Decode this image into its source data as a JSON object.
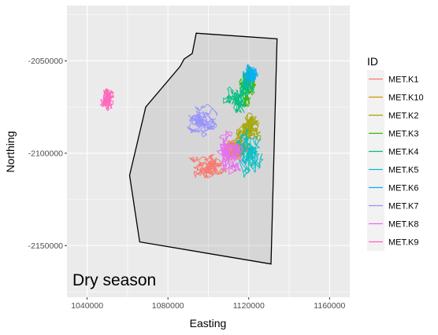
{
  "chart_data": {
    "type": "line",
    "xlabel": "Easting",
    "ylabel": "Northing",
    "xlim": [
      1030000,
      1170000
    ],
    "ylim": [
      -2178000,
      -2020000
    ],
    "x_ticks": [
      1040000,
      1080000,
      1120000,
      1160000
    ],
    "x_tick_labels": [
      "1040000",
      "1080000",
      "1120000",
      "1160000"
    ],
    "y_ticks": [
      -2050000,
      -2100000,
      -2150000
    ],
    "y_tick_labels": [
      "-2050000",
      "-2100000",
      "-2150000"
    ],
    "grid": true,
    "annotation": "Dry season",
    "legend": {
      "title": "ID",
      "position": "right"
    },
    "hull_polygon": [
      [
        1094000,
        -2035000
      ],
      [
        1134000,
        -2038000
      ],
      [
        1131000,
        -2160000
      ],
      [
        1066000,
        -2148000
      ],
      [
        1061000,
        -2112000
      ],
      [
        1069000,
        -2075000
      ],
      [
        1086000,
        -2053000
      ],
      [
        1088000,
        -2049000
      ],
      [
        1092000,
        -2046000
      ]
    ],
    "series": [
      {
        "name": "MET.K1",
        "color": "#F8766D",
        "center": [
          1098000,
          -2107000
        ],
        "spread": [
          13000,
          12000
        ]
      },
      {
        "name": "MET.K10",
        "color": "#D89000",
        "center": [
          1114000,
          -2097000
        ],
        "spread": [
          11000,
          13000
        ]
      },
      {
        "name": "MET.K2",
        "color": "#A3A500",
        "center": [
          1120000,
          -2088000
        ],
        "spread": [
          10000,
          16000
        ]
      },
      {
        "name": "MET.K3",
        "color": "#39B600",
        "center": [
          1119000,
          -2064000
        ],
        "spread": [
          8000,
          16000
        ]
      },
      {
        "name": "MET.K4",
        "color": "#00BF7D",
        "center": [
          1116000,
          -2070000
        ],
        "spread": [
          10000,
          18000
        ]
      },
      {
        "name": "MET.K5",
        "color": "#00BFC4",
        "center": [
          1119000,
          -2097000
        ],
        "spread": [
          11000,
          19000
        ]
      },
      {
        "name": "MET.K6",
        "color": "#00B0F6",
        "center": [
          1121000,
          -2058000
        ],
        "spread": [
          7000,
          10000
        ]
      },
      {
        "name": "MET.K7",
        "color": "#9590FF",
        "center": [
          1098000,
          -2083000
        ],
        "spread": [
          12000,
          12000
        ]
      },
      {
        "name": "MET.K8",
        "color": "#E76BF3",
        "center": [
          1110000,
          -2102000
        ],
        "spread": [
          13000,
          20000
        ]
      },
      {
        "name": "MET.K9",
        "color": "#FF62BC",
        "center": [
          1050000,
          -2070000
        ],
        "spread": [
          7000,
          12000
        ]
      }
    ]
  }
}
